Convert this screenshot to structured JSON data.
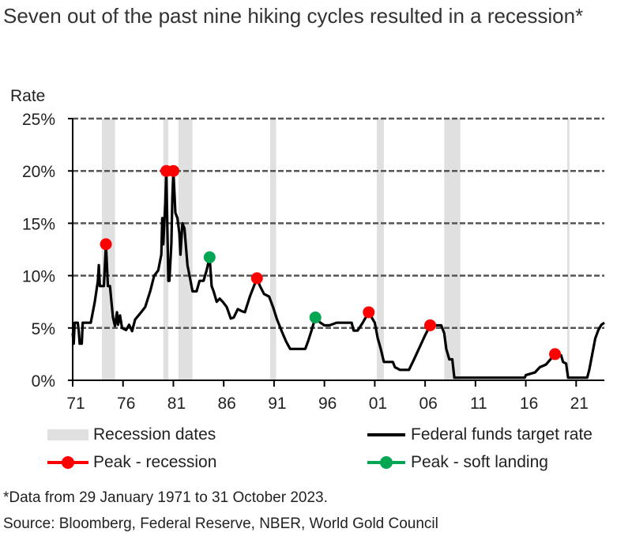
{
  "chart_data": {
    "type": "line",
    "title": "Seven out of the past nine hiking cycles resulted in a recession*",
    "ylabel": "Rate",
    "xlabel": "",
    "ylim": [
      0,
      25
    ],
    "xlim": [
      1971,
      2023.8
    ],
    "y_ticks": [
      "0%",
      "5%",
      "10%",
      "15%",
      "20%",
      "25%"
    ],
    "x_ticks": [
      {
        "year": 1971,
        "label": "71"
      },
      {
        "year": 1976,
        "label": "76"
      },
      {
        "year": 1981,
        "label": "81"
      },
      {
        "year": 1986,
        "label": "86"
      },
      {
        "year": 1991,
        "label": "91"
      },
      {
        "year": 1996,
        "label": "96"
      },
      {
        "year": 2001,
        "label": "01"
      },
      {
        "year": 2006,
        "label": "06"
      },
      {
        "year": 2011,
        "label": "11"
      },
      {
        "year": 2016,
        "label": "16"
      },
      {
        "year": 2021,
        "label": "21"
      }
    ],
    "grid": "horizontal dashed",
    "legend_placement": "bottom",
    "colors": {
      "line": "#000000",
      "recession": "#e0e0e0",
      "peak_recession": "#ff0000",
      "peak_soft": "#00a651"
    },
    "recessions": [
      [
        1973.9,
        1975.2
      ],
      [
        1980.0,
        1980.5
      ],
      [
        1981.5,
        1982.9
      ],
      [
        1990.6,
        1991.2
      ],
      [
        2001.2,
        2001.9
      ],
      [
        2007.9,
        2009.5
      ],
      [
        2020.1,
        2020.3
      ]
    ],
    "series": [
      {
        "name": "Federal funds target rate",
        "points": [
          [
            1971.0,
            4.5
          ],
          [
            1971.1,
            3.5
          ],
          [
            1971.2,
            5.5
          ],
          [
            1971.5,
            5.5
          ],
          [
            1971.6,
            4.8
          ],
          [
            1971.7,
            3.5
          ],
          [
            1971.9,
            3.5
          ],
          [
            1972.0,
            5.5
          ],
          [
            1972.8,
            5.5
          ],
          [
            1973.2,
            7.5
          ],
          [
            1973.5,
            9.5
          ],
          [
            1973.6,
            11
          ],
          [
            1973.7,
            9
          ],
          [
            1974.1,
            9
          ],
          [
            1974.3,
            13
          ],
          [
            1974.5,
            9
          ],
          [
            1974.7,
            9
          ],
          [
            1974.9,
            7
          ],
          [
            1975.0,
            6
          ],
          [
            1975.2,
            5.2
          ],
          [
            1975.4,
            6.5
          ],
          [
            1975.5,
            5.3
          ],
          [
            1975.7,
            6.2
          ],
          [
            1975.9,
            5
          ],
          [
            1976.3,
            4.8
          ],
          [
            1976.6,
            5.3
          ],
          [
            1976.9,
            4.7
          ],
          [
            1977.2,
            5.8
          ],
          [
            1977.8,
            6.5
          ],
          [
            1978.2,
            7
          ],
          [
            1978.7,
            8.5
          ],
          [
            1979.1,
            10
          ],
          [
            1979.5,
            10.5
          ],
          [
            1979.8,
            12
          ],
          [
            1979.9,
            15.5
          ],
          [
            1980.0,
            13
          ],
          [
            1980.2,
            17
          ],
          [
            1980.3,
            20
          ],
          [
            1980.5,
            9.5
          ],
          [
            1980.6,
            9.5
          ],
          [
            1980.8,
            13
          ],
          [
            1980.9,
            17.5
          ],
          [
            1981.0,
            20
          ],
          [
            1981.2,
            16
          ],
          [
            1981.4,
            15.5
          ],
          [
            1981.6,
            14
          ],
          [
            1981.7,
            12
          ],
          [
            1981.9,
            15
          ],
          [
            1982.1,
            14.5
          ],
          [
            1982.4,
            11
          ],
          [
            1982.6,
            10
          ],
          [
            1982.9,
            8.5
          ],
          [
            1983.3,
            8.5
          ],
          [
            1983.6,
            9.5
          ],
          [
            1984.0,
            9.5
          ],
          [
            1984.3,
            10.5
          ],
          [
            1984.6,
            11.75
          ],
          [
            1984.8,
            9
          ],
          [
            1985.0,
            8.5
          ],
          [
            1985.3,
            7.5
          ],
          [
            1985.6,
            7.8
          ],
          [
            1985.9,
            7.5
          ],
          [
            1986.3,
            7
          ],
          [
            1986.7,
            5.9
          ],
          [
            1987.0,
            6
          ],
          [
            1987.4,
            6.8
          ],
          [
            1987.8,
            6.6
          ],
          [
            1988.1,
            6.5
          ],
          [
            1988.6,
            8
          ],
          [
            1989.3,
            9.75
          ],
          [
            1989.6,
            9
          ],
          [
            1990.0,
            8.25
          ],
          [
            1990.5,
            8
          ],
          [
            1990.9,
            7
          ],
          [
            1991.3,
            5.8
          ],
          [
            1991.8,
            4.6
          ],
          [
            1992.2,
            3.7
          ],
          [
            1992.6,
            3
          ],
          [
            1994.1,
            3
          ],
          [
            1994.4,
            3.8
          ],
          [
            1994.7,
            4.7
          ],
          [
            1995.1,
            6
          ],
          [
            1995.6,
            5.5
          ],
          [
            1996.0,
            5.25
          ],
          [
            1996.5,
            5.25
          ],
          [
            1997.2,
            5.5
          ],
          [
            1998.7,
            5.5
          ],
          [
            1998.9,
            4.75
          ],
          [
            1999.3,
            4.75
          ],
          [
            1999.8,
            5.5
          ],
          [
            2000.4,
            6.5
          ],
          [
            2001.0,
            5.5
          ],
          [
            2001.3,
            4
          ],
          [
            2001.6,
            3
          ],
          [
            2001.9,
            1.75
          ],
          [
            2002.8,
            1.75
          ],
          [
            2003.0,
            1.25
          ],
          [
            2003.5,
            1
          ],
          [
            2004.4,
            1
          ],
          [
            2004.9,
            2
          ],
          [
            2005.5,
            3.25
          ],
          [
            2006.0,
            4.3
          ],
          [
            2006.5,
            5.25
          ],
          [
            2007.6,
            5.25
          ],
          [
            2007.9,
            4.5
          ],
          [
            2008.1,
            3
          ],
          [
            2008.4,
            2
          ],
          [
            2008.7,
            2
          ],
          [
            2008.9,
            0.25
          ],
          [
            2015.9,
            0.25
          ],
          [
            2016.0,
            0.5
          ],
          [
            2016.9,
            0.75
          ],
          [
            2017.4,
            1.25
          ],
          [
            2018.0,
            1.5
          ],
          [
            2018.9,
            2.5
          ],
          [
            2019.5,
            2.4
          ],
          [
            2019.7,
            1.75
          ],
          [
            2020.0,
            1.6
          ],
          [
            2020.2,
            0.25
          ],
          [
            2022.1,
            0.25
          ],
          [
            2022.3,
            1
          ],
          [
            2022.6,
            2.5
          ],
          [
            2022.9,
            4
          ],
          [
            2023.2,
            4.8
          ],
          [
            2023.5,
            5.3
          ],
          [
            2023.8,
            5.5
          ]
        ]
      }
    ],
    "peaks_recession": [
      [
        1974.3,
        13
      ],
      [
        1980.3,
        20
      ],
      [
        1981.0,
        20
      ],
      [
        1989.3,
        9.75
      ],
      [
        2000.4,
        6.5
      ],
      [
        2006.5,
        5.25
      ],
      [
        2018.9,
        2.5
      ]
    ],
    "peaks_soft_landing": [
      [
        1984.6,
        11.75
      ],
      [
        1995.1,
        6
      ]
    ],
    "legend": {
      "recession": "Recession dates",
      "line": "Federal funds target rate",
      "peak_recession": "Peak - recession",
      "peak_soft": "Peak - soft landing"
    }
  },
  "footnotes": {
    "note": "*Data from 29 January 1971 to 31 October 2023.",
    "source": "Source: Bloomberg, Federal Reserve, NBER, World Gold Council"
  }
}
